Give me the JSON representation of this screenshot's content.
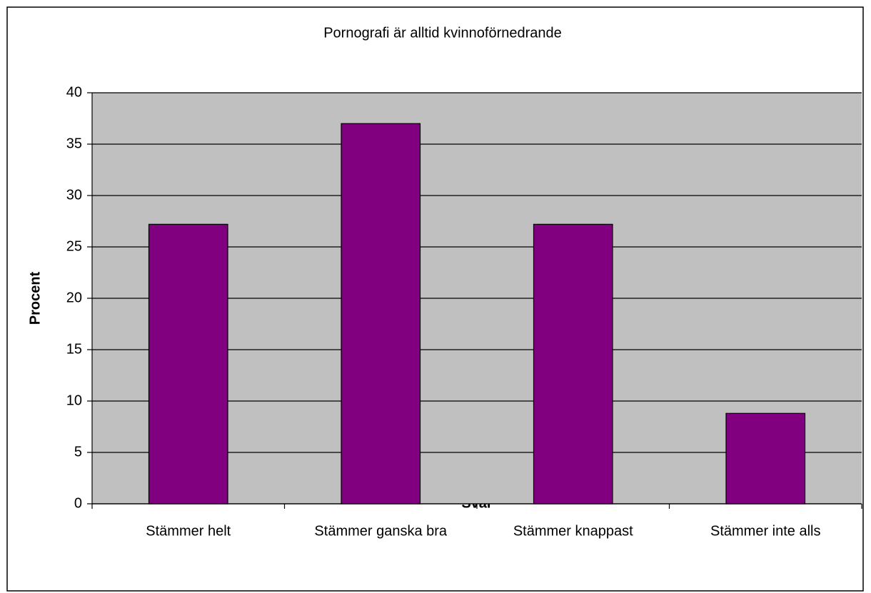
{
  "chart_data": {
    "type": "bar",
    "title": "Pornografi är alltid kvinnoförnedrande",
    "x_label": "Svar",
    "y_label": "Procent",
    "categories": [
      "Stämmer helt",
      "Stämmer ganska bra",
      "Stämmer knappast",
      "Stämmer inte alls"
    ],
    "values": [
      27.2,
      37,
      27.2,
      8.8
    ],
    "color": "#800080",
    "ylim": [
      0,
      40
    ],
    "yticks": [
      0,
      5,
      10,
      15,
      20,
      25,
      30,
      35,
      40
    ],
    "grid": true,
    "plot_background": "#c0c0c0"
  }
}
